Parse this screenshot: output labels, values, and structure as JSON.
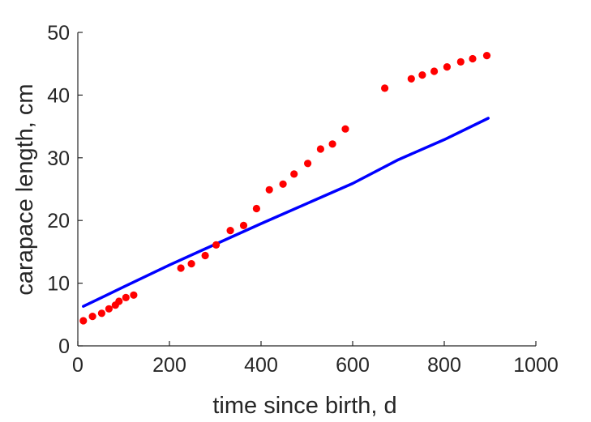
{
  "chart_data": {
    "type": "scatter",
    "xlabel": "time since birth, d",
    "ylabel": "carapace length, cm",
    "xlim": [
      0,
      1000
    ],
    "ylim": [
      0,
      50
    ],
    "xticks": [
      "0",
      "200",
      "400",
      "600",
      "800",
      "1000"
    ],
    "yticks": [
      "0",
      "10",
      "20",
      "30",
      "40",
      "50"
    ],
    "grid": false,
    "colors": {
      "points": "#ff0000",
      "line": "#0000ff",
      "axis": "#262626"
    },
    "series": [
      {
        "type": "scatter",
        "x": [
          12,
          32,
          52,
          68,
          82,
          90,
          105,
          122,
          225,
          248,
          278,
          302,
          333,
          362,
          390,
          418,
          448,
          472,
          502,
          530,
          556,
          584,
          670,
          728,
          752,
          778,
          806,
          836,
          862,
          893
        ],
        "y": [
          4.0,
          4.7,
          5.2,
          5.9,
          6.5,
          7.1,
          7.7,
          8.1,
          12.4,
          13.1,
          14.4,
          16.1,
          18.4,
          19.2,
          21.9,
          24.9,
          25.8,
          27.4,
          29.1,
          31.4,
          32.2,
          34.6,
          41.1,
          42.6,
          43.2,
          43.8,
          44.5,
          45.3,
          45.8,
          46.3
        ]
      },
      {
        "type": "line",
        "x": [
          12,
          100,
          200,
          300,
          400,
          500,
          600,
          700,
          800,
          896
        ],
        "y": [
          6.3,
          9.4,
          12.9,
          16.2,
          19.5,
          22.7,
          25.9,
          29.7,
          32.9,
          36.3
        ]
      }
    ]
  }
}
